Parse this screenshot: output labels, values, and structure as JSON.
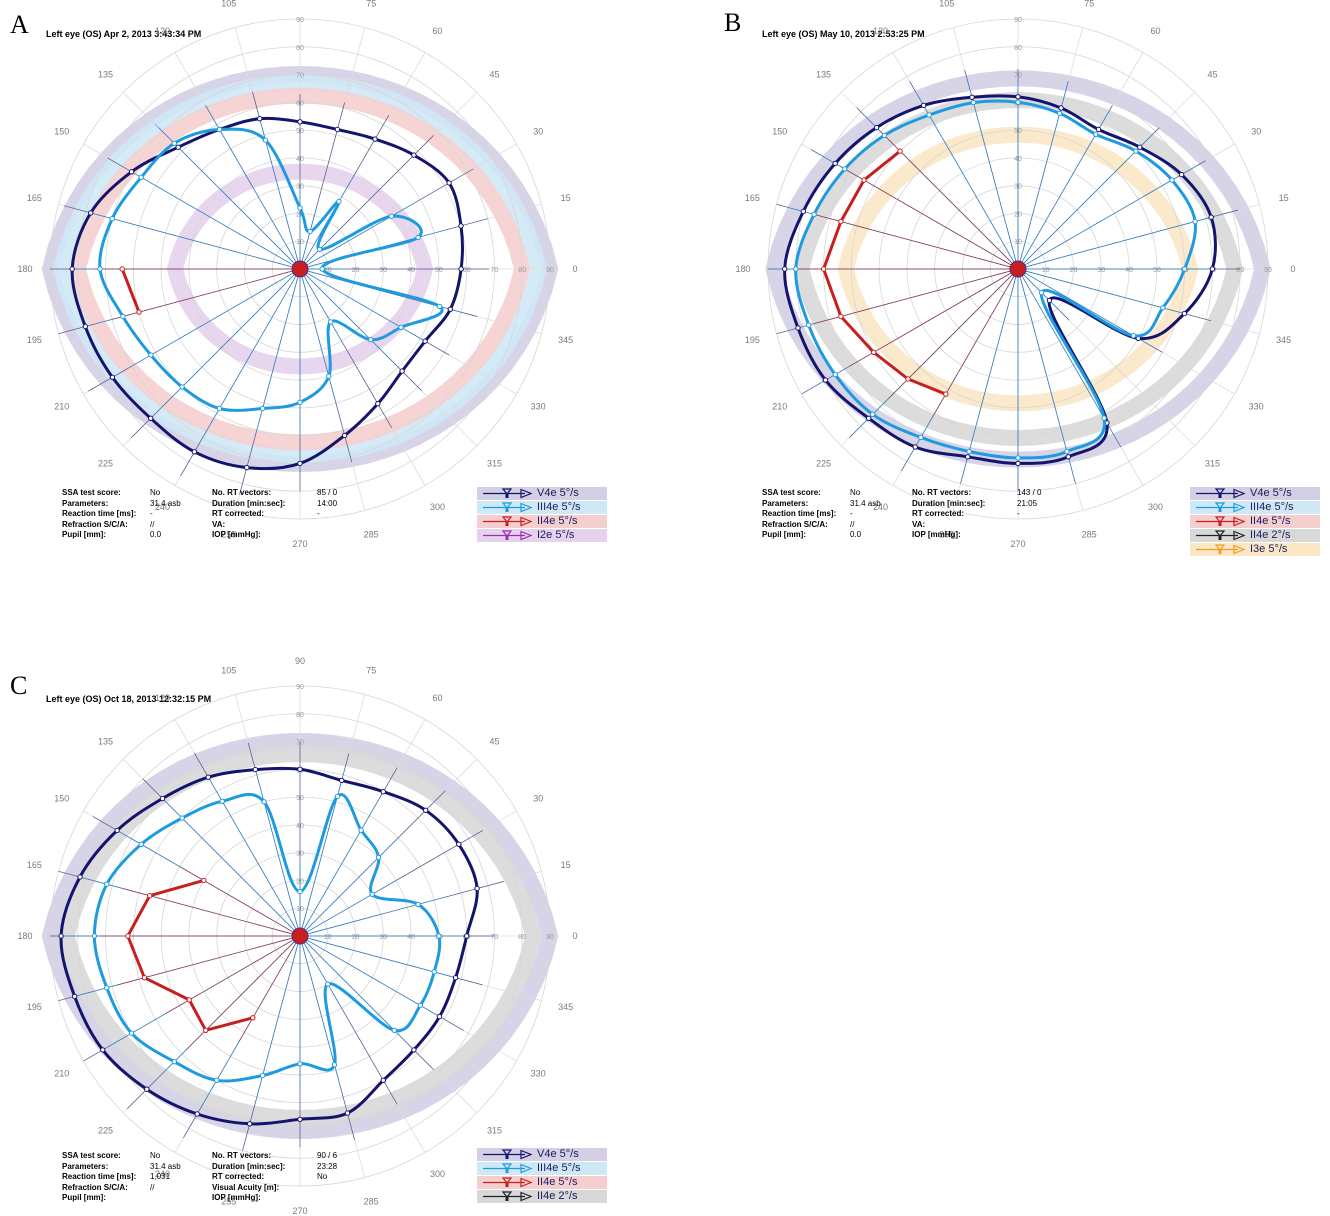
{
  "panels": [
    {
      "letter": "A",
      "title": "Left eye (OS) Apr 2, 2013 3:43:34 PM",
      "params_left": [
        {
          "label": "SSA test score:",
          "value": "No"
        },
        {
          "label": "Parameters:",
          "value": "31.4 asb"
        },
        {
          "label": "Reaction time [ms]:",
          "value": "-"
        },
        {
          "label": "Refraction S/C/A:",
          "value": "//"
        },
        {
          "label": "Pupil [mm]:",
          "value": "0.0"
        }
      ],
      "params_right": [
        {
          "label": "No. RT vectors:",
          "value": "85 / 0"
        },
        {
          "label": "Duration [min:sec]:",
          "value": "14:00"
        },
        {
          "label": "RT corrected:",
          "value": "-"
        },
        {
          "label": "VA:",
          "value": ""
        },
        {
          "label": "IOP [mmHg]:",
          "value": ""
        }
      ],
      "legend": [
        {
          "label": "V4e  5°/s",
          "color": "#14146e",
          "bg": "#d3cfe5"
        },
        {
          "label": "III4e  5°/s",
          "color": "#1e9be0",
          "bg": "#cfe8f6"
        },
        {
          "label": "II4e  5°/s",
          "color": "#c81e1e",
          "bg": "#f5cfcf"
        },
        {
          "label": "I2e  5°/s",
          "color": "#9a2fb0",
          "bg": "#e6d2ec"
        }
      ]
    },
    {
      "letter": "B",
      "title": "Left eye (OS) May 10, 2013 2:53:25 PM",
      "params_left": [
        {
          "label": "SSA test score:",
          "value": "No"
        },
        {
          "label": "Parameters:",
          "value": "31.4 asb"
        },
        {
          "label": "Reaction time [ms]:",
          "value": "-"
        },
        {
          "label": "Refraction S/C/A:",
          "value": "//"
        },
        {
          "label": "Pupil [mm]:",
          "value": "0.0"
        }
      ],
      "params_right": [
        {
          "label": "No. RT vectors:",
          "value": "143 / 0"
        },
        {
          "label": "Duration [min:sec]:",
          "value": "21:05"
        },
        {
          "label": "RT corrected:",
          "value": "-"
        },
        {
          "label": "VA:",
          "value": ""
        },
        {
          "label": "IOP [mmHg]:",
          "value": ""
        }
      ],
      "legend": [
        {
          "label": "V4e  5°/s",
          "color": "#14146e",
          "bg": "#d3cfe5"
        },
        {
          "label": "III4e  5°/s",
          "color": "#1e9be0",
          "bg": "#cfe8f6"
        },
        {
          "label": "II4e  5°/s",
          "color": "#c81e1e",
          "bg": "#f5cfcf"
        },
        {
          "label": "II4e  2°/s",
          "color": "#222222",
          "bg": "#d8d8d8"
        },
        {
          "label": "I3e  5°/s",
          "color": "#f0a020",
          "bg": "#fbe7c6"
        }
      ]
    },
    {
      "letter": "C",
      "title": "Left eye (OS) Oct 18, 2013 12:32:15 PM",
      "params_left": [
        {
          "label": "SSA test score:",
          "value": "No"
        },
        {
          "label": "Parameters:",
          "value": "31.4 asb"
        },
        {
          "label": "Reaction time [ms]:",
          "value": "1,031"
        },
        {
          "label": "Refraction S/C/A:",
          "value": "//"
        },
        {
          "label": "Pupil [mm]:",
          "value": ""
        }
      ],
      "params_right": [
        {
          "label": "No. RT vectors:",
          "value": "90 / 6"
        },
        {
          "label": "Duration [min:sec]:",
          "value": "23:28"
        },
        {
          "label": "RT corrected:",
          "value": "No"
        },
        {
          "label": "Visual Acuity [m]:",
          "value": ""
        },
        {
          "label": "IOP [mmHg]:",
          "value": ""
        }
      ],
      "legend": [
        {
          "label": "V4e  5°/s",
          "color": "#14146e",
          "bg": "#d3cfe5"
        },
        {
          "label": "III4e  5°/s",
          "color": "#1e9be0",
          "bg": "#cfe8f6"
        },
        {
          "label": "II4e  5°/s",
          "color": "#c81e1e",
          "bg": "#f5cfcf"
        },
        {
          "label": "II4e  2°/s",
          "color": "#222222",
          "bg": "#d8d8d8"
        }
      ]
    }
  ],
  "chart_data": [
    {
      "type": "polar-isopter",
      "angle_ticks": [
        "0",
        "15",
        "30",
        "45",
        "60",
        "75",
        "90",
        "105",
        "120",
        "135",
        "150",
        "165",
        "180",
        "195",
        "210",
        "225",
        "240",
        "255",
        "270",
        "285",
        "300",
        "315",
        "330",
        "345"
      ],
      "radius_ticks": [
        "10",
        "20",
        "30",
        "40",
        "50",
        "60",
        "70",
        "80",
        "90"
      ],
      "series": [
        {
          "name": "V4e 5°/s",
          "color": "#14146e",
          "band": "#d3cfe5",
          "r": [
            58,
            60,
            62,
            58,
            54,
            52,
            53,
            56,
            58,
            62,
            70,
            78,
            82,
            80,
            78,
            76,
            76,
            74,
            70,
            62,
            56,
            52,
            52,
            56
          ]
        },
        {
          "name": "III4e 5°/s",
          "color": "#1e9be0",
          "band": "#cfe8f6",
          "r": [
            8,
            44,
            38,
            10,
            28,
            14,
            22,
            48,
            58,
            64,
            66,
            70,
            72,
            66,
            62,
            60,
            58,
            52,
            48,
            40,
            22,
            36,
            42,
            52
          ]
        },
        {
          "name": "II4e 5°/s",
          "color": "#c81e1e",
          "band": "#f5cfcf",
          "r": [
            null,
            null,
            null,
            null,
            null,
            null,
            null,
            null,
            null,
            null,
            null,
            null,
            64,
            60,
            null,
            null,
            null,
            null,
            null,
            null,
            null,
            null,
            null,
            null
          ]
        },
        {
          "name": "I2e 5°/s",
          "color": "#9a2fb0",
          "band": "#e6d2ec",
          "r": []
        }
      ],
      "bands_deg": [
        {
          "series": "V4e 5°/s",
          "r": 90
        },
        {
          "series": "III4e 5°/s",
          "r": 86
        },
        {
          "series": "II4e 5°/s",
          "r": 80
        },
        {
          "series": "I2e 5°/s",
          "r": 45
        }
      ]
    },
    {
      "type": "polar-isopter",
      "angle_ticks": [
        "0",
        "15",
        "30",
        "45",
        "60",
        "75",
        "90",
        "105",
        "120",
        "135",
        "150",
        "165",
        "180",
        "195",
        "210",
        "225",
        "240",
        "255",
        "270",
        "285",
        "300",
        "315",
        "330",
        "345"
      ],
      "radius_ticks": [
        "10",
        "20",
        "30",
        "40",
        "50",
        "60",
        "70",
        "80",
        "90"
      ],
      "series": [
        {
          "name": "V4e 5°/s",
          "color": "#14146e",
          "band": "#d3cfe5",
          "r": [
            70,
            72,
            68,
            62,
            58,
            60,
            62,
            64,
            68,
            72,
            76,
            80,
            84,
            82,
            80,
            76,
            74,
            70,
            70,
            70,
            64,
            16,
            50,
            62
          ]
        },
        {
          "name": "III4e 5°/s",
          "color": "#1e9be0",
          "band": "#cfe8f6",
          "r": [
            60,
            66,
            64,
            60,
            56,
            58,
            60,
            62,
            64,
            68,
            72,
            76,
            80,
            78,
            76,
            74,
            70,
            68,
            68,
            68,
            62,
            12,
            48,
            54
          ]
        },
        {
          "name": "II4e 5°/s",
          "color": "#c81e1e",
          "band": "#f5cfcf",
          "r": [
            null,
            null,
            null,
            null,
            null,
            null,
            null,
            null,
            null,
            60,
            64,
            66,
            70,
            66,
            60,
            56,
            52,
            null,
            null,
            null,
            null,
            null,
            null,
            null
          ]
        },
        {
          "name": "II4e 2°/s",
          "color": "#222222",
          "band": "#d8d8d8",
          "r": []
        },
        {
          "name": "I3e 5°/s",
          "color": "#f0a020",
          "band": "#fbe7c6",
          "r": []
        }
      ],
      "bands_deg": [
        {
          "series": "V4e 5°/s",
          "r": 88
        },
        {
          "series": "II4e 2°/s",
          "r": 78
        },
        {
          "series": "I3e 5°/s",
          "r": 62
        }
      ]
    },
    {
      "type": "polar-isopter",
      "angle_ticks": [
        "0",
        "15",
        "30",
        "45",
        "60",
        "75",
        "90",
        "105",
        "120",
        "135",
        "150",
        "165",
        "180",
        "195",
        "210",
        "225",
        "240",
        "255",
        "270",
        "285",
        "300",
        "315",
        "330",
        "345"
      ],
      "radius_ticks": [
        "10",
        "20",
        "30",
        "40",
        "50",
        "60",
        "70",
        "80",
        "90"
      ],
      "series": [
        {
          "name": "V4e 5°/s",
          "color": "#14146e",
          "band": "#d3cfe5",
          "r": [
            60,
            66,
            66,
            64,
            60,
            58,
            60,
            62,
            66,
            70,
            76,
            82,
            86,
            84,
            82,
            78,
            74,
            70,
            66,
            66,
            60,
            58,
            58,
            58
          ]
        },
        {
          "name": "III4e 5°/s",
          "color": "#1e9be0",
          "band": "#cfe8f6",
          "r": [
            50,
            44,
            30,
            40,
            44,
            52,
            16,
            50,
            56,
            60,
            66,
            72,
            74,
            72,
            70,
            64,
            60,
            52,
            46,
            48,
            20,
            48,
            50,
            50
          ]
        },
        {
          "name": "II4e 5°/s",
          "color": "#c81e1e",
          "band": "#f5cfcf",
          "r": [
            null,
            null,
            null,
            null,
            null,
            null,
            null,
            null,
            null,
            null,
            40,
            56,
            62,
            58,
            46,
            48,
            34,
            null,
            null,
            null,
            null,
            null,
            null,
            null
          ]
        },
        {
          "name": "II4e 2°/s",
          "color": "#222222",
          "band": "#d8d8d8",
          "r": []
        }
      ],
      "bands_deg": [
        {
          "series": "V4e 5°/s",
          "r": 90
        },
        {
          "series": "II4e 2°/s",
          "r": 84
        }
      ]
    }
  ]
}
